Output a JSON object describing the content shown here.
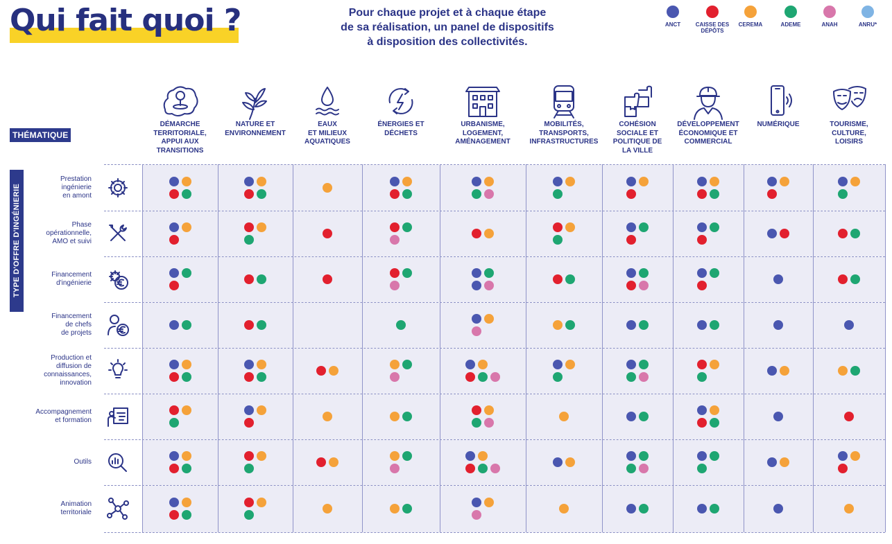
{
  "header": {
    "title": "Qui fait quoi ?",
    "subtitle_lines": [
      "Pour chaque projet et à chaque étape",
      "de sa réalisation, un panel de dispositifs",
      "à disposition des collectivités."
    ]
  },
  "legend": [
    {
      "key": "anct",
      "label": "ANCT",
      "color": "#4a57b0"
    },
    {
      "key": "cdc",
      "label": "CAISSE DES DÉPÔTS",
      "color": "#e2202e"
    },
    {
      "key": "cerema",
      "label": "CEREMA",
      "color": "#f5a23a"
    },
    {
      "key": "ademe",
      "label": "ADEME",
      "color": "#1ea672"
    },
    {
      "key": "anah",
      "label": "ANAH",
      "color": "#d877ab"
    },
    {
      "key": "anru",
      "label": "ANRU*",
      "color": "#7fb4e4"
    }
  ],
  "labels": {
    "thematique": "THÉMATIQUE",
    "type_offre": "TYPE D'OFFRE D'INGÉNIERIE"
  },
  "columns": [
    {
      "icon": "map-pin-region-icon",
      "label": [
        "DÉMARCHE",
        "TERRITORIALE,",
        "APPUI AUX",
        "TRANSITIONS"
      ]
    },
    {
      "icon": "plant-icon",
      "label": [
        "NATURE ET",
        "ENVIRONNEMENT"
      ]
    },
    {
      "icon": "water-drop-icon",
      "label": [
        "EAUX",
        "ET MILIEUX",
        "AQUATIQUES"
      ]
    },
    {
      "icon": "energy-recycle-icon",
      "label": [
        "ÉNERGIES ET",
        "DÉCHETS"
      ]
    },
    {
      "icon": "building-icon",
      "label": [
        "URBANISME,",
        "LOGEMENT,",
        "AMÉNAGEMENT"
      ]
    },
    {
      "icon": "train-icon",
      "label": [
        "MOBILITÉS,",
        "TRANSPORTS,",
        "INFRASTRUCTURES"
      ]
    },
    {
      "icon": "puzzle-icon",
      "label": [
        "COHÉSION",
        "SOCIALE ET",
        "POLITIQUE DE",
        "LA VILLE"
      ]
    },
    {
      "icon": "worker-icon",
      "label": [
        "DÉVELOPPEMENT",
        "ÉCONOMIQUE ET",
        "COMMERCIAL"
      ]
    },
    {
      "icon": "smartphone-icon",
      "label": [
        "NUMÉRIQUE"
      ]
    },
    {
      "icon": "theatre-masks-icon",
      "label": [
        "TOURISME,",
        "CULTURE,",
        "LOISIRS"
      ]
    }
  ],
  "rows": [
    {
      "icon": "gear-icon",
      "label": [
        "Prestation",
        "ingénierie",
        "en amont"
      ],
      "cells": [
        [
          "anct",
          "cerema",
          "cdc",
          "ademe"
        ],
        [
          "anct",
          "cerema",
          "cdc",
          "ademe"
        ],
        [
          "cerema"
        ],
        [
          "anct",
          "cerema",
          "cdc",
          "ademe"
        ],
        [
          "anct",
          "cerema",
          "ademe",
          "anah"
        ],
        [
          "anct",
          "cerema",
          "ademe"
        ],
        [
          "anct",
          "cerema",
          "cdc"
        ],
        [
          "anct",
          "cerema",
          "cdc",
          "ademe"
        ],
        [
          "anct",
          "cerema",
          "cdc"
        ],
        [
          "anct",
          "cerema",
          "ademe"
        ]
      ]
    },
    {
      "icon": "tools-icon",
      "label": [
        "Phase",
        "opérationnelle,",
        "AMO et suivi"
      ],
      "cells": [
        [
          "anct",
          "cerema",
          "cdc"
        ],
        [
          "cdc",
          "cerema",
          "ademe"
        ],
        [
          "cdc"
        ],
        [
          "cdc",
          "ademe",
          "anah"
        ],
        [
          "cdc",
          "cerema"
        ],
        [
          "cdc",
          "cerema",
          "ademe"
        ],
        [
          "anct",
          "ademe",
          "cdc"
        ],
        [
          "anct",
          "ademe",
          "cdc"
        ],
        [
          "anct",
          "cdc"
        ],
        [
          "cdc",
          "ademe"
        ]
      ]
    },
    {
      "icon": "gear-euro-icon",
      "label": [
        "Financement",
        "d'ingénierie"
      ],
      "cells": [
        [
          "anct",
          "ademe",
          "cdc"
        ],
        [
          "cdc",
          "ademe"
        ],
        [
          "cdc"
        ],
        [
          "cdc",
          "ademe",
          "anah"
        ],
        [
          "anct",
          "ademe",
          "anct",
          "anah"
        ],
        [
          "cdc",
          "ademe"
        ],
        [
          "anct",
          "ademe",
          "cdc",
          "anah"
        ],
        [
          "anct",
          "ademe",
          "cdc"
        ],
        [
          "anct"
        ],
        [
          "cdc",
          "ademe"
        ]
      ]
    },
    {
      "icon": "person-euro-icon",
      "label": [
        "Financement",
        "de chefs",
        "de projets"
      ],
      "cells": [
        [
          "anct",
          "ademe"
        ],
        [
          "cdc",
          "ademe"
        ],
        [],
        [
          "ademe"
        ],
        [
          "anct",
          "cerema",
          "anah"
        ],
        [
          "cerema",
          "ademe"
        ],
        [
          "anct",
          "ademe"
        ],
        [
          "anct",
          "ademe"
        ],
        [
          "anct"
        ],
        [
          "anct"
        ]
      ]
    },
    {
      "icon": "lightbulb-icon",
      "label": [
        "Production et",
        "diffusion de",
        "connaissances,",
        "innovation"
      ],
      "cells": [
        [
          "anct",
          "cerema",
          "cdc",
          "ademe"
        ],
        [
          "anct",
          "cerema",
          "cdc",
          "ademe"
        ],
        [
          "cdc",
          "cerema"
        ],
        [
          "cerema",
          "ademe",
          "anah"
        ],
        [
          "anct",
          "cerema",
          "cdc",
          "ademe",
          "anah"
        ],
        [
          "anct",
          "cerema",
          "ademe"
        ],
        [
          "anct",
          "ademe",
          "ademe",
          "anah"
        ],
        [
          "cdc",
          "cerema",
          "ademe"
        ],
        [
          "anct",
          "cerema"
        ],
        [
          "cerema",
          "ademe"
        ]
      ]
    },
    {
      "icon": "presentation-icon",
      "label": [
        "Accompagnement",
        "et formation"
      ],
      "cells": [
        [
          "cdc",
          "cerema",
          "ademe"
        ],
        [
          "anct",
          "cerema",
          "cdc"
        ],
        [
          "cerema"
        ],
        [
          "cerema",
          "ademe"
        ],
        [
          "cdc",
          "cerema",
          "ademe",
          "anah"
        ],
        [
          "cerema"
        ],
        [
          "anct",
          "ademe"
        ],
        [
          "anct",
          "cerema",
          "cdc",
          "ademe"
        ],
        [
          "anct"
        ],
        [
          "cdc"
        ]
      ]
    },
    {
      "icon": "analysis-icon",
      "label": [
        "Outils"
      ],
      "cells": [
        [
          "anct",
          "cerema",
          "cdc",
          "ademe"
        ],
        [
          "cdc",
          "cerema",
          "ademe"
        ],
        [
          "cdc",
          "cerema"
        ],
        [
          "cerema",
          "ademe",
          "anah"
        ],
        [
          "anct",
          "cerema",
          "cdc",
          "ademe",
          "anah"
        ],
        [
          "anct",
          "cerema"
        ],
        [
          "anct",
          "ademe",
          "ademe",
          "anah"
        ],
        [
          "anct",
          "ademe",
          "ademe"
        ],
        [
          "anct",
          "cerema"
        ],
        [
          "anct",
          "cerema",
          "cdc"
        ]
      ]
    },
    {
      "icon": "network-icon",
      "label": [
        "Animation",
        "territoriale"
      ],
      "cells": [
        [
          "anct",
          "cerema",
          "cdc",
          "ademe"
        ],
        [
          "cdc",
          "cerema",
          "ademe"
        ],
        [
          "cerema"
        ],
        [
          "cerema",
          "ademe"
        ],
        [
          "anct",
          "cerema",
          "anah"
        ],
        [
          "cerema"
        ],
        [
          "anct",
          "ademe"
        ],
        [
          "anct",
          "ademe"
        ],
        [
          "anct"
        ],
        [
          "cerema"
        ]
      ]
    }
  ]
}
